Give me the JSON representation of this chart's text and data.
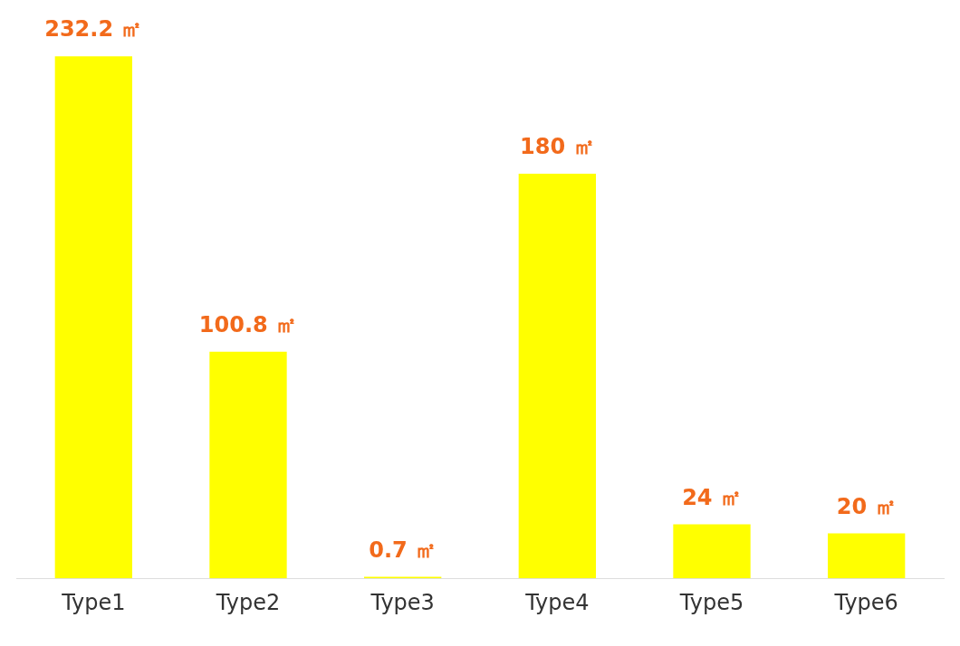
{
  "chart_data": {
    "type": "bar",
    "categories": [
      "Type1",
      "Type2",
      "Type3",
      "Type4",
      "Type5",
      "Type6"
    ],
    "values": [
      232.2,
      100.8,
      0.7,
      180,
      24,
      20
    ],
    "color": "#ffff00",
    "value_labels": [
      "232.2 ㎡",
      "100.8 ㎡",
      "0.7 ㎡",
      "180 ㎡",
      "24 ㎡",
      "20 ㎡"
    ],
    "grid": false,
    "legend": false
  }
}
